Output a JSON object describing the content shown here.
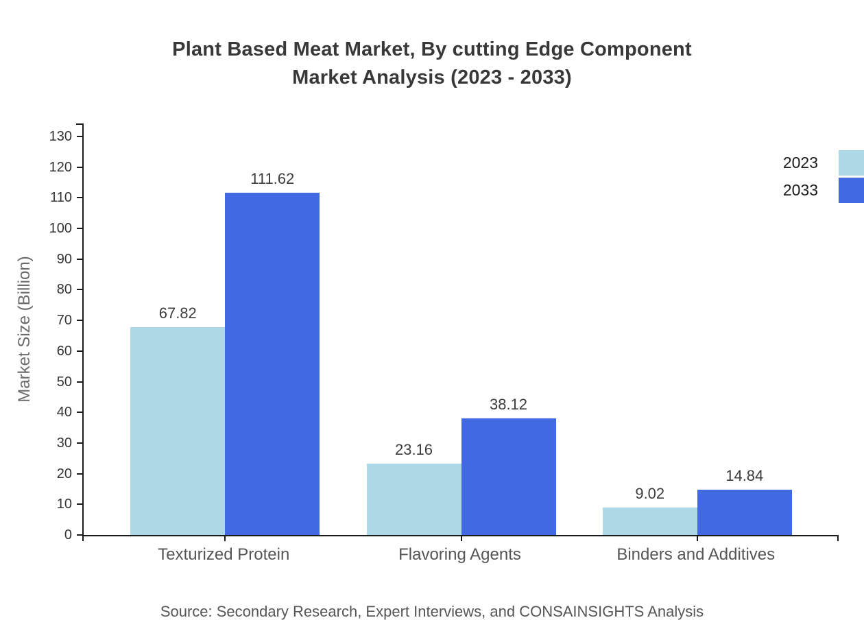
{
  "title": {
    "line1": "Plant Based Meat Market, By cutting Edge Component",
    "line2": "Market Analysis (2023 - 2033)"
  },
  "source": "Source: Secondary Research, Expert Interviews, and CONSAINSIGHTS Analysis",
  "legend": {
    "items": [
      {
        "label": "2023",
        "color": "#ADD8E6"
      },
      {
        "label": "2033",
        "color": "#4169E1"
      }
    ]
  },
  "chart_data": {
    "type": "bar",
    "title": "Plant Based Meat Market, By cutting Edge Component Market Analysis (2023 - 2033)",
    "categories": [
      "Texturized Protein",
      "Flavoring Agents",
      "Binders and Additives"
    ],
    "series": [
      {
        "name": "2023",
        "color": "#ADD8E6",
        "values": [
          67.82,
          23.16,
          9.02
        ]
      },
      {
        "name": "2033",
        "color": "#4169E1",
        "values": [
          111.62,
          38.12,
          14.84
        ]
      }
    ],
    "value_labels": {
      "2023": [
        "67.82",
        "23.16",
        "9.02"
      ],
      "2033": [
        "111.62",
        "38.12",
        "14.84"
      ]
    },
    "xlabel": "",
    "ylabel": "Market Size (Billion)",
    "ylim": [
      0,
      130
    ],
    "yticks": [
      0,
      10,
      20,
      30,
      40,
      50,
      60,
      70,
      80,
      90,
      100,
      110,
      120,
      130
    ],
    "grid": false,
    "legend_position": "top-right",
    "axis_color": "#1a1a1a",
    "title_color": "#383838",
    "tick_label_color": "#333333",
    "category_label_color": "#555555"
  }
}
